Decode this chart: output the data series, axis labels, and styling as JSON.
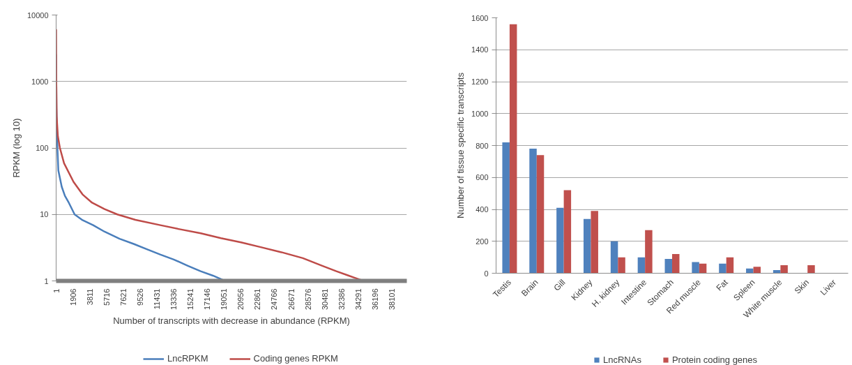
{
  "chart_data": [
    {
      "type": "line",
      "xlabel": "Number of transcripts with decrease in abundance (RPKM)",
      "ylabel": "RPKM (log 10)",
      "log": true,
      "grid": "y",
      "legend": "bottom",
      "xlim": [
        1,
        39800
      ],
      "xticks": [
        1,
        1906,
        3811,
        5716,
        7621,
        9526,
        11431,
        13336,
        15241,
        17146,
        19051,
        20956,
        22861,
        24766,
        26671,
        28576,
        30481,
        32386,
        34291,
        36196,
        38101
      ],
      "ylim": [
        1,
        10000
      ],
      "yticks": [
        1,
        10,
        100,
        1000,
        10000
      ],
      "series": [
        {
          "name": "LncRPKM",
          "color": "#4a7ebb",
          "x": [
            1,
            40,
            150,
            250,
            640,
            1000,
            1440,
            2100,
            3000,
            4200,
            5500,
            7200,
            8800,
            10300,
            11800,
            13350,
            14900,
            16400,
            17800,
            19150
          ],
          "values": [
            2500,
            400,
            100,
            46,
            26,
            19,
            15,
            10,
            8.2,
            6.9,
            5.5,
            4.3,
            3.6,
            3.0,
            2.5,
            2.1,
            1.7,
            1.4,
            1.2,
            1
          ]
        },
        {
          "name": "Coding genes RPKM",
          "color": "#be4b48",
          "x": [
            1,
            20,
            60,
            200,
            430,
            900,
            1970,
            3000,
            4080,
            5500,
            6950,
            9000,
            11830,
            14000,
            16410,
            18700,
            20980,
            23300,
            25570,
            28000,
            30150,
            31800,
            33210,
            34880
          ],
          "values": [
            6000,
            1000,
            300,
            150,
            100,
            59,
            31,
            20,
            15,
            12,
            10,
            8.3,
            6.9,
            6.0,
            5.2,
            4.4,
            3.8,
            3.2,
            2.7,
            2.2,
            1.7,
            1.4,
            1.2,
            1
          ]
        }
      ]
    },
    {
      "type": "bar",
      "ylabel": "Number of tissue specific transcripts",
      "grid": "y",
      "legend": "bottom",
      "categories": [
        "Testis",
        "Brain",
        "Gill",
        "Kidney",
        "H. kidney",
        "Intestine",
        "Stomach",
        "Red muscle",
        "Fat",
        "Spleen",
        "White muscle",
        "Skin",
        "Liver"
      ],
      "ylim": [
        0,
        1600
      ],
      "yticks": [
        0,
        200,
        400,
        600,
        800,
        1000,
        1200,
        1400,
        1600
      ],
      "series": [
        {
          "name": "LncRNAs",
          "color": "#4f81bd",
          "values": [
            820,
            780,
            410,
            340,
            200,
            100,
            90,
            70,
            60,
            30,
            20,
            0,
            0
          ]
        },
        {
          "name": "Protein coding genes",
          "color": "#c0504d",
          "values": [
            1560,
            740,
            520,
            390,
            100,
            270,
            120,
            60,
            100,
            40,
            50,
            50,
            0
          ]
        }
      ]
    }
  ]
}
